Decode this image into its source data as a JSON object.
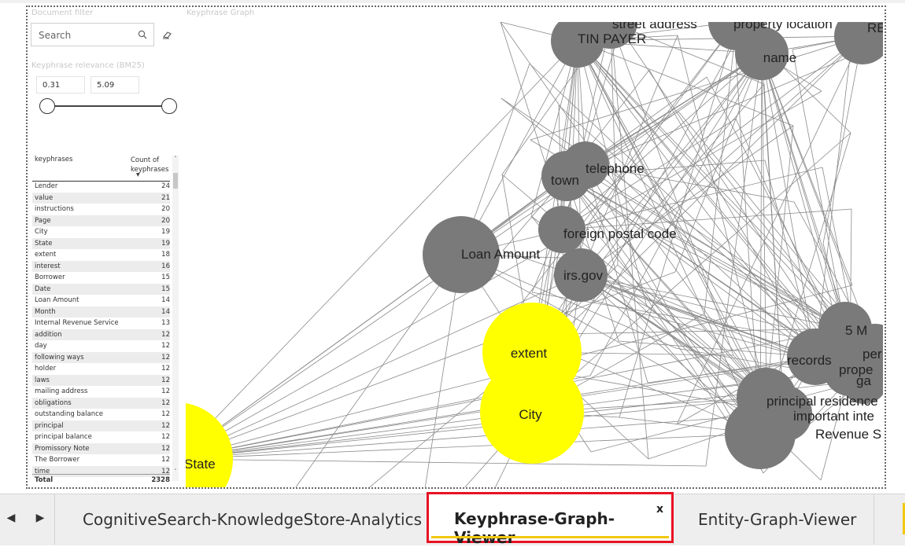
{
  "filter_pane": {
    "title": "Document filter",
    "search_placeholder": "Search",
    "relevance_title": "Keyphrase relevance (BM25)",
    "range_min": "0.31",
    "range_max": "5.09",
    "slider_min_fraction": 0,
    "slider_max_fraction": 1
  },
  "table": {
    "col1_header": "keyphrases",
    "col2_header_line1": "Count of",
    "col2_header_line2": "keyphrases",
    "rows": [
      {
        "name": "Lender",
        "count": "24"
      },
      {
        "name": "value",
        "count": "21"
      },
      {
        "name": "instructions",
        "count": "20"
      },
      {
        "name": "Page",
        "count": "20"
      },
      {
        "name": "City",
        "count": "19"
      },
      {
        "name": "State",
        "count": "19"
      },
      {
        "name": "extent",
        "count": "18"
      },
      {
        "name": "interest",
        "count": "16"
      },
      {
        "name": "Borrower",
        "count": "15"
      },
      {
        "name": "Date",
        "count": "15"
      },
      {
        "name": "Loan Amount",
        "count": "14"
      },
      {
        "name": "Month",
        "count": "14"
      },
      {
        "name": "Internal Revenue Service",
        "count": "13"
      },
      {
        "name": "addition",
        "count": "12"
      },
      {
        "name": "day",
        "count": "12"
      },
      {
        "name": "following ways",
        "count": "12"
      },
      {
        "name": "holder",
        "count": "12"
      },
      {
        "name": "laws",
        "count": "12"
      },
      {
        "name": "mailing address",
        "count": "12"
      },
      {
        "name": "obligations",
        "count": "12"
      },
      {
        "name": "outstanding balance",
        "count": "12"
      },
      {
        "name": "principal",
        "count": "12"
      },
      {
        "name": "principal balance",
        "count": "12"
      },
      {
        "name": "Promissory Note",
        "count": "12"
      },
      {
        "name": "The Borrower",
        "count": "12"
      },
      {
        "name": "time",
        "count": "12"
      }
    ],
    "total_label": "Total",
    "total_count": "2328"
  },
  "graph": {
    "title": "Keyphrase Graph",
    "node_color_gray": "#7a7a7a",
    "node_color_yellow": "#ffff00",
    "edge_color": "#8a8a8a",
    "nodes": [
      {
        "label": "TIN PAYER",
        "color": "gray"
      },
      {
        "label": "street address",
        "color": "gray"
      },
      {
        "label": "property location",
        "color": "gray"
      },
      {
        "label": "name",
        "color": "gray"
      },
      {
        "label": "RE",
        "color": "gray"
      },
      {
        "label": "telephone",
        "color": "gray"
      },
      {
        "label": "town",
        "color": "gray"
      },
      {
        "label": "foreign postal code",
        "color": "gray"
      },
      {
        "label": "Loan Amount",
        "color": "gray"
      },
      {
        "label": "irs.gov",
        "color": "gray"
      },
      {
        "label": "extent",
        "color": "yellow"
      },
      {
        "label": "City",
        "color": "yellow"
      },
      {
        "label": "State",
        "color": "yellow"
      },
      {
        "label": "5 M",
        "color": "gray"
      },
      {
        "label": "per",
        "color": "gray"
      },
      {
        "label": "records",
        "color": "gray"
      },
      {
        "label": "prope",
        "color": "gray"
      },
      {
        "label": "ga",
        "color": "gray"
      },
      {
        "label": "principal residence",
        "color": "gray"
      },
      {
        "label": "important inte",
        "color": "gray"
      },
      {
        "label": "Revenue S",
        "color": "gray"
      }
    ]
  },
  "tabs": [
    {
      "label": "CognitiveSearch-KnowledgeStore-Analytics"
    },
    {
      "label": "Keyphrase-Graph-Viewer",
      "close": "x"
    },
    {
      "label": "Entity-Graph-Viewer"
    }
  ],
  "nav": {
    "prev": "◀",
    "next": "▶"
  }
}
